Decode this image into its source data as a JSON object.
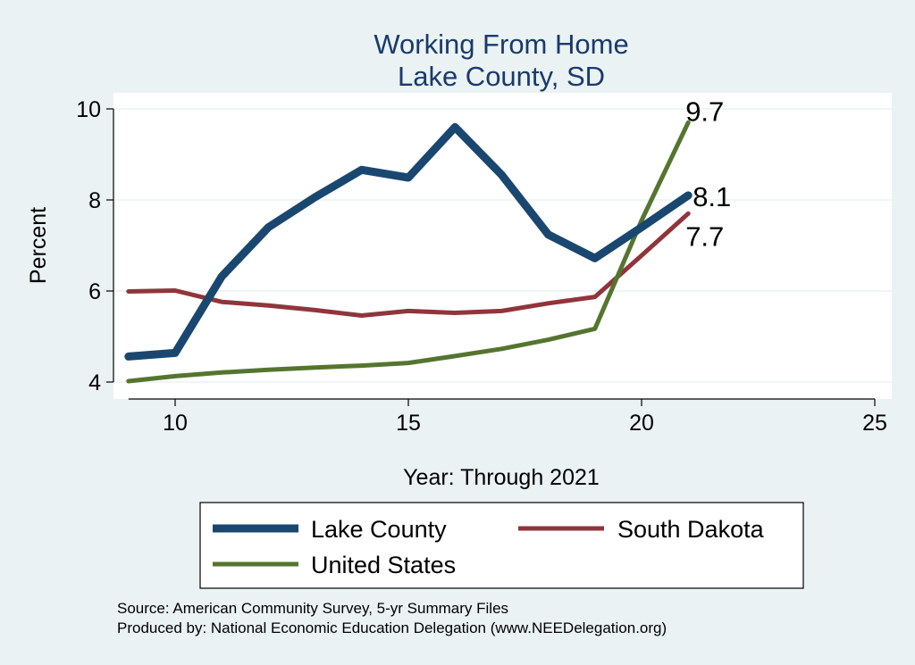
{
  "chart_data": {
    "type": "line",
    "title": [
      "Working From Home",
      "Lake County, SD"
    ],
    "xlabel": "Year: Through 2021",
    "ylabel": "Percent",
    "xlim": [
      9,
      25
    ],
    "ylim": [
      4,
      10
    ],
    "xticks": [
      10,
      15,
      20,
      25
    ],
    "yticks": [
      4,
      6,
      8,
      10
    ],
    "grid": true,
    "series": [
      {
        "name": "Lake County",
        "color": "#1a476f",
        "x": [
          9,
          10,
          11,
          12,
          13,
          14,
          15,
          16,
          17,
          18,
          19,
          20,
          21
        ],
        "y": [
          4.56,
          4.64,
          6.32,
          7.4,
          8.06,
          8.66,
          8.49,
          9.6,
          8.55,
          7.24,
          6.72,
          7.4,
          8.1
        ],
        "end_label": "8.1"
      },
      {
        "name": "South Dakota",
        "color": "#90353b",
        "x": [
          9,
          10,
          11,
          12,
          13,
          14,
          15,
          16,
          17,
          18,
          19,
          20,
          21
        ],
        "y": [
          5.99,
          6.01,
          5.76,
          5.68,
          5.58,
          5.46,
          5.56,
          5.52,
          5.56,
          5.73,
          5.87,
          6.78,
          7.7
        ],
        "end_label": "7.7"
      },
      {
        "name": "United States",
        "color": "#55752f",
        "x": [
          9,
          10,
          11,
          12,
          13,
          14,
          15,
          16,
          17,
          18,
          19,
          20,
          21
        ],
        "y": [
          4.02,
          4.13,
          4.21,
          4.27,
          4.32,
          4.36,
          4.42,
          4.57,
          4.73,
          4.93,
          5.17,
          7.55,
          9.7
        ],
        "end_label": "9.7"
      }
    ],
    "legend": {
      "placement": "bottom",
      "entries": [
        "Lake County",
        "South Dakota",
        "United States"
      ]
    },
    "notes": [
      "Source: American Community Survey, 5-yr Summary Files",
      "Produced by: National Economic Education Delegation (www.NEEDelegation.org)"
    ]
  }
}
